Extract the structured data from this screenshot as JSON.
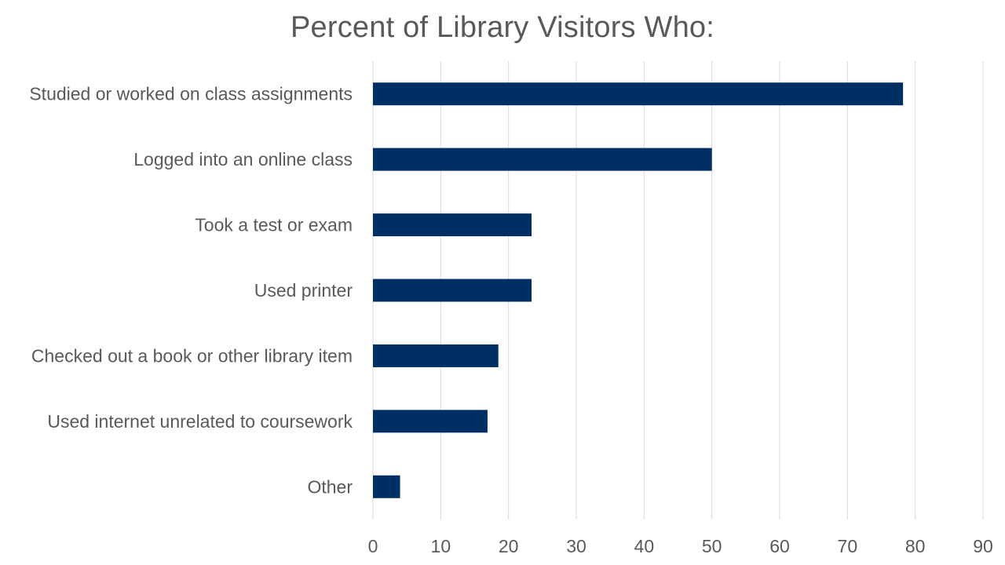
{
  "chart_data": {
    "type": "bar",
    "orientation": "horizontal",
    "title": "Percent of Library Visitors Who:",
    "xlabel": "",
    "ylabel": "",
    "categories": [
      "Studied or worked on class assignments",
      "Logged into an online class",
      "Took a test or exam",
      "Used printer",
      "Checked out a book or other library item",
      "Used internet unrelated to coursework",
      "Other"
    ],
    "values": [
      78.2,
      50,
      23.4,
      23.4,
      18.5,
      16.9,
      4
    ],
    "xlim": [
      0,
      90
    ],
    "xticks": [
      0,
      10,
      20,
      30,
      40,
      50,
      60,
      70,
      80,
      90
    ],
    "xtick_labels": [
      "0",
      "10",
      "20",
      "30",
      "40",
      "50",
      "60",
      "70",
      "80",
      "90"
    ],
    "grid": "vertical",
    "legend": "none",
    "bar_color": "#003063",
    "grid_color": "#d9d9d9",
    "text_color": "#595959"
  }
}
